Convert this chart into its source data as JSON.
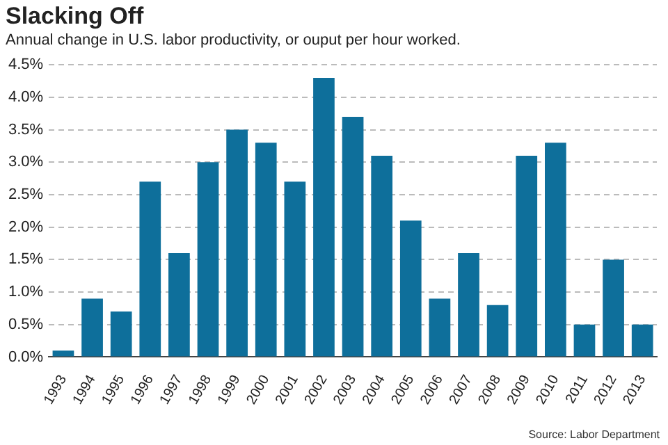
{
  "chart_data": {
    "type": "bar",
    "title": "Slacking Off",
    "subtitle": "Annual change in U.S. labor productivity, or ouput per hour worked.",
    "categories": [
      "1993",
      "1994",
      "1995",
      "1996",
      "1997",
      "1998",
      "1999",
      "2000",
      "2001",
      "2002",
      "2003",
      "2004",
      "2005",
      "2006",
      "2007",
      "2008",
      "2009",
      "2010",
      "2011",
      "2012",
      "2013"
    ],
    "values": [
      0.1,
      0.9,
      0.7,
      2.7,
      1.6,
      3.0,
      3.5,
      3.3,
      2.7,
      4.3,
      3.7,
      3.1,
      2.1,
      0.9,
      1.6,
      0.8,
      3.1,
      3.3,
      0.5,
      1.5,
      0.5
    ],
    "color": "#0e6f9b",
    "ylim": [
      0,
      4.5
    ],
    "yticks": [
      {
        "value": 0,
        "label": "0.0%"
      },
      {
        "value": 0.5,
        "label": "0.5%"
      },
      {
        "value": 1,
        "label": "1.0%"
      },
      {
        "value": 1.5,
        "label": "1.5%"
      },
      {
        "value": 2,
        "label": "2.0%"
      },
      {
        "value": 2.5,
        "label": "2.5%"
      },
      {
        "value": 3,
        "label": "3.0%"
      },
      {
        "value": 3.5,
        "label": "3.5%"
      },
      {
        "value": 4,
        "label": "4.0%"
      },
      {
        "value": 4.5,
        "label": "4.5%"
      }
    ],
    "grid": "y",
    "annotations": [
      "Source: Labor Department"
    ]
  }
}
